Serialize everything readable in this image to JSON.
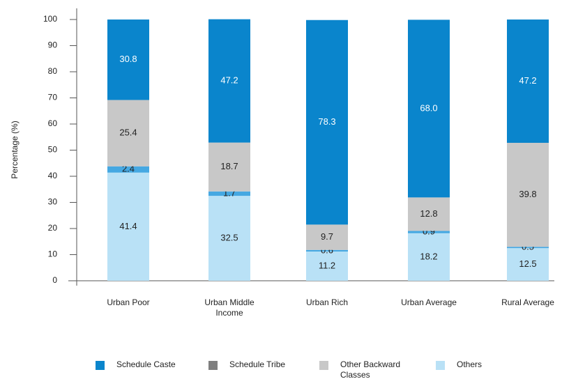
{
  "chart_data": {
    "type": "stacked_bar",
    "y_label": "Percentage (%)",
    "categories": [
      "Urban Poor",
      "Urban Middle Income",
      "Urban Rich",
      "Urban Average",
      "Rural Average"
    ],
    "series": [
      {
        "name": "Others",
        "color": "#b9e1f6",
        "values": [
          41.4,
          32.5,
          11.2,
          18.2,
          12.5
        ]
      },
      {
        "name": "Schedule Tribe",
        "color": "#45a8e2",
        "legend_color": "#7f7f7f",
        "values": [
          2.4,
          1.7,
          0.6,
          0.9,
          0.5
        ]
      },
      {
        "name": "Other Backward Classes",
        "color": "#c8c8c8",
        "values": [
          25.4,
          18.7,
          9.7,
          12.8,
          39.8
        ]
      },
      {
        "name": "Schedule Caste",
        "color": "#0a85cc",
        "values": [
          30.8,
          47.2,
          78.3,
          68.0,
          47.2
        ],
        "value_labels": [
          "30.8",
          "47.2",
          "78.3",
          "68.0",
          "47.2"
        ]
      }
    ],
    "legend_order": [
      3,
      1,
      2,
      0
    ],
    "ylim": [
      0,
      100
    ],
    "yticks": [
      0,
      10,
      20,
      30,
      40,
      50,
      60,
      70,
      80,
      90,
      100
    ]
  }
}
